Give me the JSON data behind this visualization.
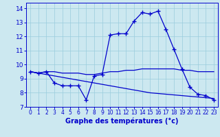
{
  "title": "Graphe des températures (°c)",
  "bg_color": "#cce8f0",
  "grid_color": "#99ccdd",
  "line_color": "#0000cc",
  "xlim": [
    -0.5,
    23.5
  ],
  "ylim": [
    7,
    14.4
  ],
  "yticks": [
    7,
    8,
    9,
    10,
    11,
    12,
    13,
    14
  ],
  "xticks": [
    0,
    1,
    2,
    3,
    4,
    5,
    6,
    7,
    8,
    9,
    10,
    11,
    12,
    13,
    14,
    15,
    16,
    17,
    18,
    19,
    20,
    21,
    22,
    23
  ],
  "series": [
    {
      "x": [
        0,
        1,
        2,
        3,
        4,
        5,
        6,
        7,
        8,
        9,
        10,
        11,
        12,
        13,
        14,
        15,
        16,
        17,
        18,
        19,
        20,
        21,
        22,
        23
      ],
      "y": [
        9.5,
        9.4,
        9.5,
        9.5,
        9.4,
        9.4,
        9.4,
        9.3,
        9.3,
        9.4,
        9.5,
        9.5,
        9.6,
        9.6,
        9.7,
        9.7,
        9.7,
        9.7,
        9.7,
        9.6,
        9.6,
        9.5,
        9.5,
        9.5
      ],
      "marker": null,
      "linestyle": "-",
      "linewidth": 0.9
    },
    {
      "x": [
        0,
        1,
        2,
        3,
        4,
        5,
        6,
        7,
        8,
        9,
        10,
        11,
        12,
        13,
        14,
        15,
        16,
        17,
        18,
        19,
        20,
        21,
        22,
        23
      ],
      "y": [
        9.5,
        9.4,
        9.5,
        8.7,
        8.5,
        8.5,
        8.5,
        7.5,
        9.2,
        9.3,
        12.1,
        12.2,
        12.2,
        13.1,
        13.7,
        13.6,
        13.8,
        12.5,
        11.1,
        9.7,
        8.4,
        7.9,
        7.8,
        7.5
      ],
      "marker": "+",
      "linestyle": "-",
      "linewidth": 0.9
    },
    {
      "x": [
        0,
        1,
        2,
        3,
        4,
        5,
        6,
        7,
        8,
        9,
        10,
        11,
        12,
        13,
        14,
        15,
        16,
        17,
        18,
        19,
        20,
        21,
        22,
        23
      ],
      "y": [
        9.5,
        9.4,
        9.3,
        9.2,
        9.1,
        9.0,
        8.9,
        8.8,
        8.7,
        8.6,
        8.5,
        8.4,
        8.3,
        8.2,
        8.1,
        8.0,
        7.95,
        7.9,
        7.85,
        7.8,
        7.75,
        7.7,
        7.65,
        7.6
      ],
      "marker": null,
      "linestyle": "-",
      "linewidth": 0.9
    }
  ]
}
